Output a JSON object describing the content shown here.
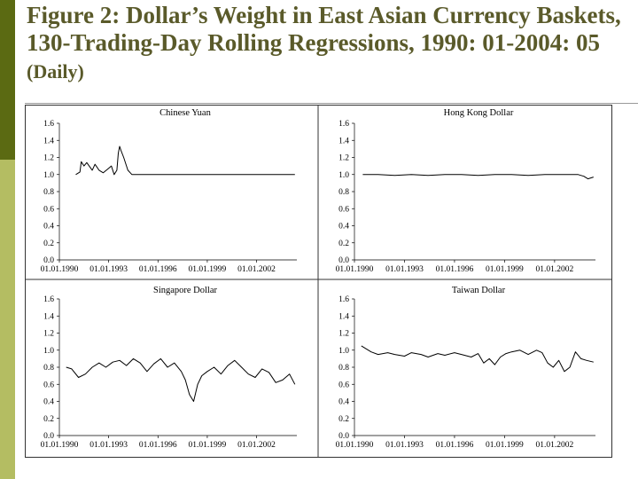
{
  "title": {
    "main": "Figure 2: Dollar’s Weight in East Asian Currency Baskets, 130-Trading-Day Rolling Regressions, 1990: 01-2004: 05",
    "suffix": "(Daily)"
  },
  "chart_data": [
    {
      "type": "line",
      "title": "Chinese Yuan",
      "ylim": [
        0,
        1.6
      ],
      "yticks": [
        "1.6",
        "1.4",
        "1.2",
        "1.0",
        "0.8",
        "0.6",
        "0.4",
        "0.2",
        "0.0"
      ],
      "xticks": [
        "01.01.1990",
        "01.01.1993",
        "01.01.1996",
        "01.01.1999",
        "01.01.2002"
      ],
      "series": [
        {
          "x": [
            "1991-01",
            "1991-04",
            "1991-05",
            "1991-07",
            "1991-09",
            "1992-01",
            "1992-03",
            "1992-06",
            "1992-09",
            "1992-12",
            "1993-03",
            "1993-05",
            "1993-07",
            "1993-08",
            "1993-09",
            "1993-10",
            "1993-12",
            "1994-03",
            "1994-06",
            "1995-06",
            "1998-01",
            "2001-01",
            "2004-05"
          ],
          "y": [
            1.0,
            1.03,
            1.15,
            1.1,
            1.14,
            1.05,
            1.12,
            1.05,
            1.02,
            1.06,
            1.1,
            1.0,
            1.05,
            1.25,
            1.33,
            1.28,
            1.2,
            1.05,
            1.0,
            1.0,
            1.0,
            1.0,
            1.0
          ]
        }
      ]
    },
    {
      "type": "line",
      "title": "Hong Kong Dollar",
      "ylim": [
        0,
        1.6
      ],
      "yticks": [
        "1.6",
        "1.4",
        "1.2",
        "1.0",
        "0.8",
        "0.6",
        "0.4",
        "0.2",
        "0.0"
      ],
      "xticks": [
        "01.01.1990",
        "01.01.1993",
        "01.01.1996",
        "01.01.1999",
        "01.01.2002"
      ],
      "series": [
        {
          "x": [
            "1990-07",
            "1991-06",
            "1992-06",
            "1993-06",
            "1994-06",
            "1995-06",
            "1996-06",
            "1997-06",
            "1998-06",
            "1999-06",
            "2000-06",
            "2001-06",
            "2002-06",
            "2003-06",
            "2003-10",
            "2004-01",
            "2004-05"
          ],
          "y": [
            1.0,
            1.0,
            0.99,
            1.0,
            0.99,
            1.0,
            1.0,
            0.99,
            1.0,
            1.0,
            0.99,
            1.0,
            1.0,
            1.0,
            0.98,
            0.95,
            0.97
          ]
        }
      ]
    },
    {
      "type": "line",
      "title": "Singapore Dollar",
      "ylim": [
        0,
        1.6
      ],
      "yticks": [
        "1.6",
        "1.4",
        "1.2",
        "1.0",
        "0.8",
        "0.6",
        "0.4",
        "0.2",
        "0.0"
      ],
      "xticks": [
        "01.01.1990",
        "01.01.1993",
        "01.01.1996",
        "01.01.1999",
        "01.01.2002"
      ],
      "series": [
        {
          "x": [
            "1990-06",
            "1990-10",
            "1991-03",
            "1991-08",
            "1992-01",
            "1992-06",
            "1992-11",
            "1993-04",
            "1993-09",
            "1994-02",
            "1994-07",
            "1994-12",
            "1995-05",
            "1995-10",
            "1996-03",
            "1996-08",
            "1997-01",
            "1997-06",
            "1997-09",
            "1997-12",
            "1998-03",
            "1998-06",
            "1998-09",
            "1999-01",
            "1999-06",
            "1999-11",
            "2000-04",
            "2000-09",
            "2001-02",
            "2001-07",
            "2001-12",
            "2002-05",
            "2002-10",
            "2003-03",
            "2003-08",
            "2004-01",
            "2004-05"
          ],
          "y": [
            0.8,
            0.78,
            0.68,
            0.72,
            0.8,
            0.85,
            0.8,
            0.86,
            0.88,
            0.82,
            0.9,
            0.85,
            0.75,
            0.84,
            0.9,
            0.8,
            0.85,
            0.75,
            0.65,
            0.48,
            0.4,
            0.6,
            0.7,
            0.75,
            0.8,
            0.72,
            0.82,
            0.88,
            0.8,
            0.72,
            0.68,
            0.78,
            0.74,
            0.62,
            0.65,
            0.72,
            0.6
          ]
        }
      ]
    },
    {
      "type": "line",
      "title": "Taiwan Dollar",
      "ylim": [
        0,
        1.6
      ],
      "yticks": [
        "1.6",
        "1.4",
        "1.2",
        "1.0",
        "0.8",
        "0.6",
        "0.4",
        "0.2",
        "0.0"
      ],
      "xticks": [
        "01.01.1990",
        "01.01.1993",
        "01.01.1996",
        "01.01.1999",
        "01.01.2002"
      ],
      "series": [
        {
          "x": [
            "1990-06",
            "1990-09",
            "1991-01",
            "1991-06",
            "1992-01",
            "1992-06",
            "1993-01",
            "1993-06",
            "1994-01",
            "1994-06",
            "1995-01",
            "1995-06",
            "1996-01",
            "1996-06",
            "1997-01",
            "1997-06",
            "1997-10",
            "1998-02",
            "1998-06",
            "1998-10",
            "1999-02",
            "1999-06",
            "1999-12",
            "2000-06",
            "2000-12",
            "2001-04",
            "2001-08",
            "2001-12",
            "2002-04",
            "2002-08",
            "2002-12",
            "2003-04",
            "2003-08",
            "2003-12",
            "2004-05"
          ],
          "y": [
            1.05,
            1.02,
            0.98,
            0.95,
            0.97,
            0.95,
            0.93,
            0.97,
            0.95,
            0.92,
            0.96,
            0.94,
            0.97,
            0.95,
            0.92,
            0.96,
            0.85,
            0.9,
            0.83,
            0.92,
            0.96,
            0.98,
            1.0,
            0.95,
            1.0,
            0.97,
            0.85,
            0.8,
            0.88,
            0.75,
            0.8,
            0.98,
            0.9,
            0.88,
            0.86
          ]
        }
      ]
    }
  ]
}
